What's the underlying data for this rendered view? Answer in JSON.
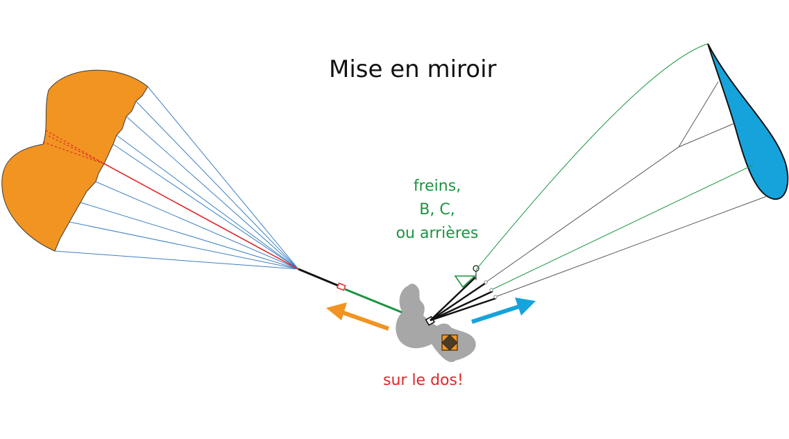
{
  "title": "Mise en miroir",
  "brakes_label": [
    "freins,",
    "B, C,",
    "ou arrières"
  ],
  "back_label": "sur le dos!",
  "colors": {
    "canopy_left": "#f19421",
    "canopy_right": "#16a3dc",
    "lines_blue": "#3a7fc1",
    "line_red": "#e0262a",
    "green": "#1a9441",
    "grey_pilot": "#a7a7a7",
    "arrow_orange": "#f19421",
    "arrow_blue": "#16a3dc",
    "text_red": "#e0262a",
    "text_dark": "#111111"
  }
}
